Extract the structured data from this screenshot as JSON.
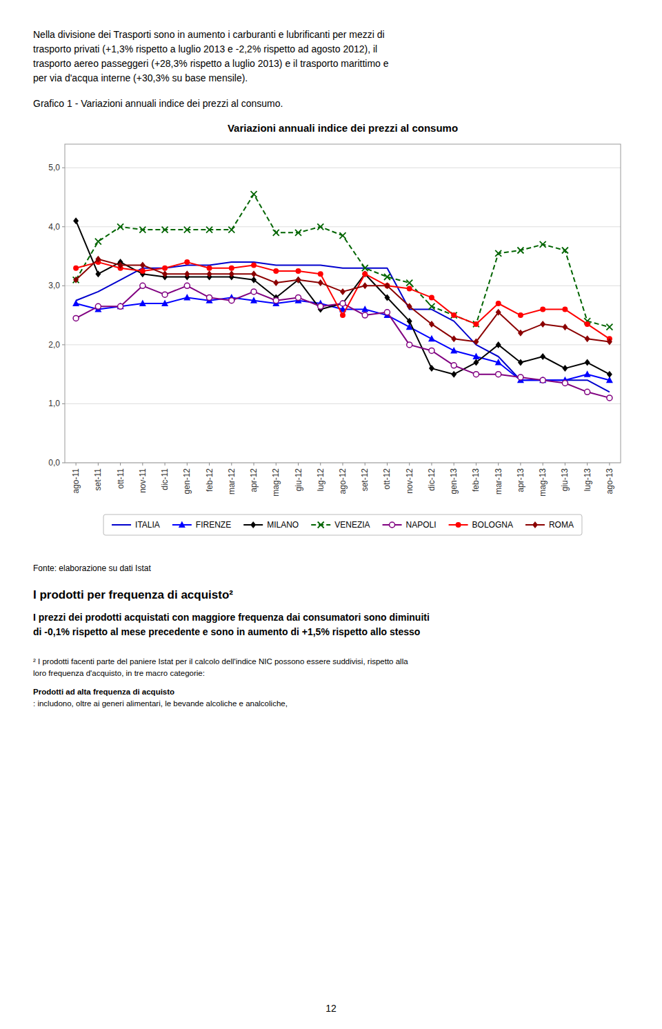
{
  "chart_data": {
    "type": "line",
    "title": "Variazioni annuali indice dei prezzi al consumo",
    "categories": [
      "ago-11",
      "set-11",
      "ott-11",
      "nov-11",
      "dic-11",
      "gen-12",
      "feb-12",
      "mar-12",
      "apr-12",
      "mag-12",
      "giu-12",
      "lug-12",
      "ago-12",
      "set-12",
      "ott-12",
      "nov-12",
      "dic-12",
      "gen-13",
      "feb-13",
      "mar-13",
      "apr-13",
      "mag-13",
      "giu-13",
      "lug-13",
      "ago-13"
    ],
    "series": [
      {
        "name": "ITALIA",
        "color": "#0000CD",
        "line_style": "solid",
        "marker": "none",
        "values": [
          2.75,
          2.9,
          3.1,
          3.3,
          3.3,
          3.35,
          3.35,
          3.4,
          3.4,
          3.35,
          3.35,
          3.35,
          3.3,
          3.3,
          3.3,
          2.6,
          2.6,
          2.4,
          2.0,
          1.8,
          1.4,
          1.4,
          1.4,
          1.4,
          1.2
        ]
      },
      {
        "name": "FIRENZE",
        "color": "#0000FF",
        "line_style": "solid",
        "marker": "triangle",
        "values": [
          2.7,
          2.6,
          2.65,
          2.7,
          2.7,
          2.8,
          2.75,
          2.8,
          2.75,
          2.7,
          2.75,
          2.7,
          2.6,
          2.6,
          2.5,
          2.3,
          2.1,
          1.9,
          1.8,
          1.7,
          1.4,
          1.4,
          1.4,
          1.5,
          1.4
        ]
      },
      {
        "name": "MILANO",
        "color": "#000000",
        "line_style": "solid",
        "marker": "diamond",
        "values": [
          4.1,
          3.2,
          3.4,
          3.2,
          3.15,
          3.15,
          3.15,
          3.15,
          3.1,
          2.8,
          3.1,
          2.6,
          2.7,
          3.2,
          2.8,
          2.4,
          1.6,
          1.5,
          1.7,
          2.0,
          1.7,
          1.8,
          1.6,
          1.7,
          1.5
        ]
      },
      {
        "name": "VENEZIA",
        "color": "#006400",
        "line_style": "dashed",
        "marker": "x",
        "values": [
          3.1,
          3.75,
          4.0,
          3.95,
          3.95,
          3.95,
          3.95,
          3.95,
          4.55,
          3.9,
          3.9,
          4.0,
          3.85,
          3.3,
          3.15,
          3.05,
          2.65,
          2.5,
          2.35,
          3.55,
          3.6,
          3.7,
          3.6,
          2.4,
          2.3
        ]
      },
      {
        "name": "NAPOLI",
        "color": "#800080",
        "line_style": "solid",
        "marker": "circle-open",
        "values": [
          2.45,
          2.65,
          2.65,
          3.0,
          2.85,
          3.0,
          2.8,
          2.75,
          2.9,
          2.75,
          2.8,
          2.65,
          2.7,
          2.5,
          2.55,
          2.0,
          1.9,
          1.65,
          1.5,
          1.5,
          1.45,
          1.4,
          1.35,
          1.2,
          1.1
        ]
      },
      {
        "name": "BOLOGNA",
        "color": "#FF0000",
        "line_style": "solid",
        "marker": "circle",
        "values": [
          3.3,
          3.4,
          3.3,
          3.25,
          3.3,
          3.4,
          3.3,
          3.3,
          3.35,
          3.25,
          3.25,
          3.2,
          2.5,
          3.2,
          3.0,
          2.95,
          2.8,
          2.5,
          2.35,
          2.7,
          2.5,
          2.6,
          2.6,
          2.35,
          2.1
        ]
      },
      {
        "name": "ROMA",
        "color": "#8B0000",
        "line_style": "solid",
        "marker": "diamond",
        "values": [
          3.1,
          3.45,
          3.35,
          3.35,
          3.2,
          3.2,
          3.2,
          3.2,
          3.2,
          3.05,
          3.1,
          3.05,
          2.9,
          3.0,
          3.0,
          2.65,
          2.35,
          2.1,
          2.05,
          2.55,
          2.2,
          2.35,
          2.3,
          2.1,
          2.05
        ]
      }
    ],
    "ylim": [
      0.0,
      5.4
    ],
    "yticks": [
      {
        "value": 0.0,
        "label": "0,0"
      },
      {
        "value": 1.0,
        "label": "1,0"
      },
      {
        "value": 2.0,
        "label": "2,0"
      },
      {
        "value": 3.0,
        "label": "3,0"
      },
      {
        "value": 4.0,
        "label": "4,0"
      },
      {
        "value": 5.0,
        "label": "5,0"
      }
    ],
    "grid": true,
    "legend": "bottom"
  },
  "page": {
    "intro": [
      "Nella divisione dei Trasporti sono in aumento i carburanti e lubrificanti per mezzi di",
      "trasporto privati (+1,3% rispetto a luglio 2013 e -2,2% rispetto ad agosto 2012), il",
      "trasporto aereo passeggeri (+28,3% rispetto a luglio 2013) e il trasporto marittimo e",
      "per via d'acqua interne (+30,3% su base mensile)."
    ],
    "caption": "Grafico 1 - Variazioni annuali indice dei prezzi al consumo.",
    "source": "Fonte: elaborazione su dati Istat",
    "heading": "I prodotti per frequenza di acquisto²",
    "lead": [
      "I prezzi dei prodotti acquistati con maggiore frequenza dai consumatori sono diminuiti",
      "di -0,1% rispetto al mese precedente e sono in aumento di +1,5% rispetto allo stesso"
    ],
    "footnote": [
      "² I prodotti facenti parte del paniere Istat per il calcolo dell'indice NIC possono essere suddivisi, rispetto alla",
      "loro frequenza d'acquisto, in tre macro categorie:"
    ],
    "footnote_term": "Prodotti ad alta frequenza di acquisto",
    "footnote_term_text": ": includono, oltre ai generi alimentari, le bevande alcoliche e analcoliche,",
    "page_number": "12"
  }
}
